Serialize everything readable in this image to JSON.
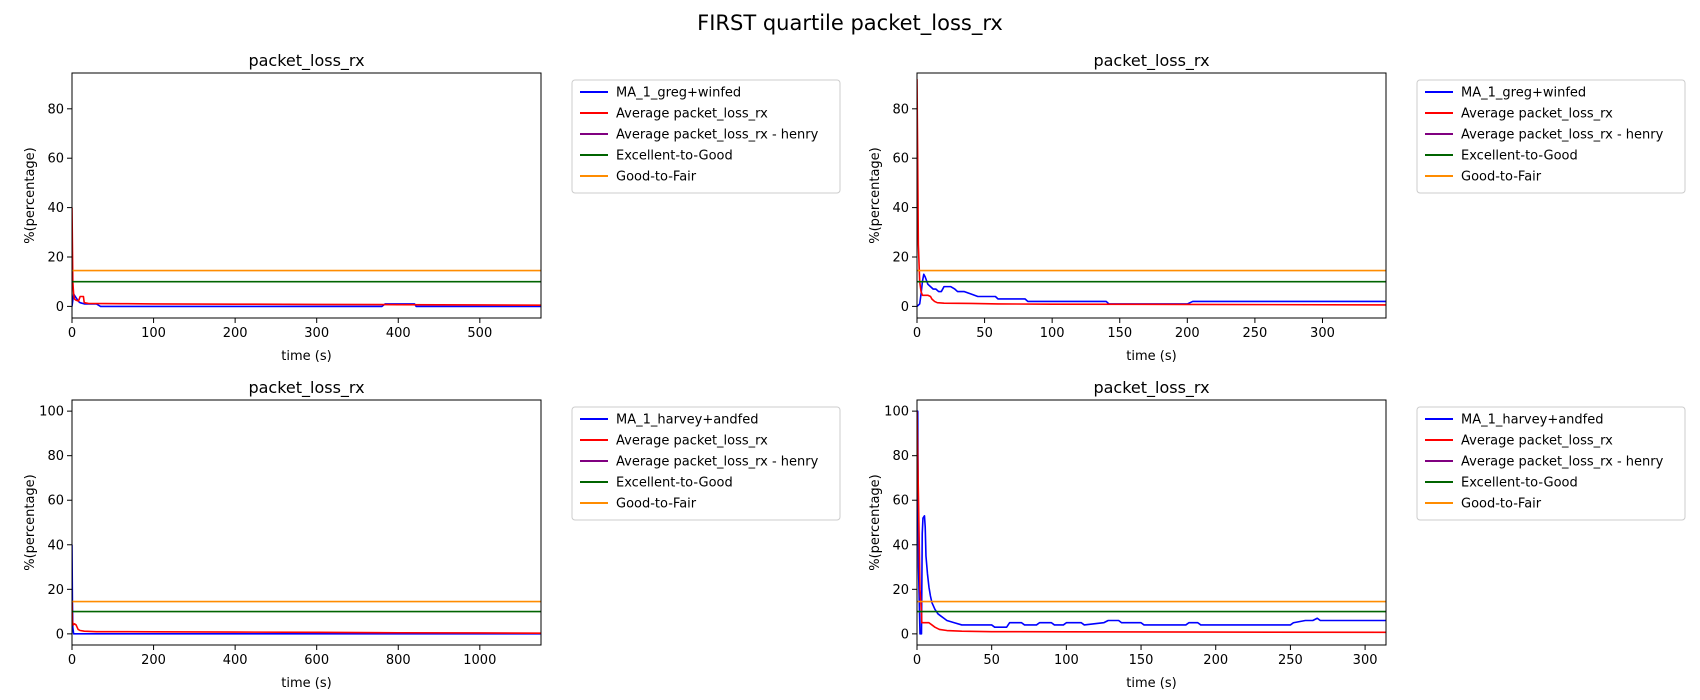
{
  "figure": {
    "title": "FIRST quartile packet_loss_rx"
  },
  "chart_data": [
    {
      "type": "line",
      "title": "packet_loss_rx",
      "xlabel": "time (s)",
      "ylabel": "%(percentage)",
      "xlim": [
        0,
        575
      ],
      "ylim": [
        -4.7,
        94.5
      ],
      "xticks": [
        0,
        100,
        200,
        300,
        400,
        500
      ],
      "yticks": [
        0,
        20,
        40,
        60,
        80
      ],
      "legend_position": "outside-right-top",
      "series": [
        {
          "name": "MA_1_greg+winfed",
          "color": "#0000ff",
          "x": [
            0,
            2,
            4,
            6,
            8,
            10,
            15,
            20,
            30,
            35,
            36,
            380,
            384,
            420,
            422,
            575
          ],
          "y": [
            0,
            5,
            4,
            3,
            2,
            1.5,
            1,
            1,
            1,
            0,
            0,
            0,
            1,
            1,
            0,
            0
          ]
        },
        {
          "name": "Average packet_loss_rx",
          "color": "#ff0000",
          "x": [
            0,
            0.5,
            1,
            2,
            3,
            5,
            8,
            10,
            11,
            14,
            15,
            20,
            60,
            100,
            200,
            300,
            400,
            500,
            575
          ],
          "y": [
            40,
            25,
            10,
            5,
            3,
            2.5,
            2.2,
            4,
            4,
            4,
            1.5,
            1.2,
            1.1,
            1,
            0.9,
            0.8,
            0.7,
            0.6,
            0.5
          ]
        },
        {
          "name": "Average packet_loss_rx - henry",
          "color": "#800080",
          "x": [],
          "y": []
        },
        {
          "name": "Excellent-to-Good",
          "color": "#006400",
          "x": [
            0,
            575
          ],
          "y": [
            10,
            10
          ]
        },
        {
          "name": "Good-to-Fair",
          "color": "#ff8c00",
          "x": [
            0,
            575
          ],
          "y": [
            14.5,
            14.5
          ]
        }
      ]
    },
    {
      "type": "line",
      "title": "packet_loss_rx",
      "xlabel": "time (s)",
      "ylabel": "%(percentage)",
      "xlim": [
        0,
        347
      ],
      "ylim": [
        -4.7,
        94.5
      ],
      "xticks": [
        0,
        50,
        100,
        150,
        200,
        250,
        300
      ],
      "yticks": [
        0,
        20,
        40,
        60,
        80
      ],
      "legend_position": "outside-right-top",
      "series": [
        {
          "name": "MA_1_greg+winfed",
          "color": "#0000ff",
          "x": [
            0,
            2,
            3,
            4,
            5,
            6,
            8,
            10,
            12,
            14,
            16,
            18,
            20,
            25,
            28,
            30,
            35,
            40,
            45,
            50,
            58,
            60,
            80,
            82,
            140,
            142,
            200,
            204,
            347
          ],
          "y": [
            0,
            1,
            5,
            10,
            13,
            12,
            9,
            8,
            7,
            7,
            6,
            6,
            8,
            8,
            7,
            6,
            6,
            5,
            4,
            4,
            4,
            3,
            3,
            2,
            2,
            1,
            1,
            2,
            2
          ]
        },
        {
          "name": "Average packet_loss_rx",
          "color": "#ff0000",
          "x": [
            0,
            0.5,
            1,
            2,
            3,
            4,
            8,
            10,
            11,
            13,
            15,
            20,
            40,
            60,
            100,
            200,
            347
          ],
          "y": [
            92,
            60,
            25,
            10,
            6,
            4.5,
            4.5,
            4,
            3,
            2,
            1.5,
            1.3,
            1.2,
            1,
            0.9,
            0.8,
            0.6
          ]
        },
        {
          "name": "Average packet_loss_rx - henry",
          "color": "#800080",
          "x": [],
          "y": []
        },
        {
          "name": "Excellent-to-Good",
          "color": "#006400",
          "x": [
            0,
            347
          ],
          "y": [
            10,
            10
          ]
        },
        {
          "name": "Good-to-Fair",
          "color": "#ff8c00",
          "x": [
            0,
            347
          ],
          "y": [
            14.5,
            14.5
          ]
        }
      ]
    },
    {
      "type": "line",
      "title": "packet_loss_rx",
      "xlabel": "time (s)",
      "ylabel": "%(percentage)",
      "xlim": [
        0,
        1150
      ],
      "ylim": [
        -5,
        105
      ],
      "xticks": [
        0,
        200,
        400,
        600,
        800,
        1000
      ],
      "yticks": [
        0,
        20,
        40,
        60,
        80,
        100
      ],
      "legend_position": "outside-right-top",
      "series": [
        {
          "name": "MA_1_harvey+andfed",
          "color": "#0000ff",
          "x": [
            0,
            1,
            2,
            4,
            6,
            1150
          ],
          "y": [
            40,
            15,
            3,
            0,
            0,
            0
          ]
        },
        {
          "name": "Average packet_loss_rx",
          "color": "#ff0000",
          "x": [
            0,
            1,
            3,
            6,
            10,
            15,
            20,
            30,
            60,
            100,
            200,
            400,
            600,
            800,
            1000,
            1150
          ],
          "y": [
            15,
            6,
            4,
            4.5,
            4,
            2,
            1.5,
            1.2,
            1,
            1,
            0.9,
            0.8,
            0.7,
            0.5,
            0.4,
            0.3
          ]
        },
        {
          "name": "Average packet_loss_rx - henry",
          "color": "#800080",
          "x": [],
          "y": []
        },
        {
          "name": "Excellent-to-Good",
          "color": "#006400",
          "x": [
            0,
            1150
          ],
          "y": [
            10,
            10
          ]
        },
        {
          "name": "Good-to-Fair",
          "color": "#ff8c00",
          "x": [
            0,
            1150
          ],
          "y": [
            14.5,
            14.5
          ]
        }
      ]
    },
    {
      "type": "line",
      "title": "packet_loss_rx",
      "xlabel": "time (s)",
      "ylabel": "%(percentage)",
      "xlim": [
        0,
        314
      ],
      "ylim": [
        -5,
        105
      ],
      "xticks": [
        0,
        50,
        100,
        150,
        200,
        250,
        300
      ],
      "yticks": [
        0,
        20,
        40,
        60,
        80,
        100
      ],
      "legend_position": "outside-right-top",
      "series": [
        {
          "name": "MA_1_harvey+andfed",
          "color": "#0000ff",
          "x": [
            0,
            0.5,
            1,
            2,
            3,
            3.5,
            4,
            5,
            5.5,
            6,
            7,
            8,
            9,
            10,
            12,
            14,
            16,
            18,
            20,
            25,
            30,
            50,
            52,
            60,
            62,
            70,
            72,
            80,
            82,
            90,
            92,
            98,
            100,
            110,
            112,
            125,
            128,
            135,
            137,
            150,
            152,
            160,
            162,
            180,
            182,
            188,
            190,
            250,
            252,
            260,
            265,
            268,
            270,
            314
          ],
          "y": [
            100,
            100,
            30,
            0,
            0,
            45,
            52,
            53,
            48,
            35,
            27,
            21,
            17,
            14,
            11,
            9,
            8,
            7,
            6,
            5,
            4,
            4,
            3,
            3,
            5,
            5,
            4,
            4,
            5,
            5,
            4,
            4,
            5,
            5,
            4,
            5,
            6,
            6,
            5,
            5,
            4,
            4,
            4,
            4,
            5,
            5,
            4,
            4,
            5,
            6,
            6,
            7,
            6,
            6
          ]
        },
        {
          "name": "Average packet_loss_rx",
          "color": "#ff0000",
          "x": [
            0,
            0.5,
            1,
            2,
            3,
            3.2,
            8,
            10,
            12,
            15,
            20,
            30,
            50,
            100,
            200,
            314
          ],
          "y": [
            100,
            80,
            60,
            20,
            10,
            5,
            5,
            4,
            3,
            2,
            1.5,
            1.2,
            1,
            0.9,
            0.8,
            0.7
          ]
        },
        {
          "name": "Average packet_loss_rx - henry",
          "color": "#800080",
          "x": [],
          "y": []
        },
        {
          "name": "Excellent-to-Good",
          "color": "#006400",
          "x": [
            0,
            314
          ],
          "y": [
            10,
            10
          ]
        },
        {
          "name": "Good-to-Fair",
          "color": "#ff8c00",
          "x": [
            0,
            314
          ],
          "y": [
            14.5,
            14.5
          ]
        }
      ]
    }
  ]
}
